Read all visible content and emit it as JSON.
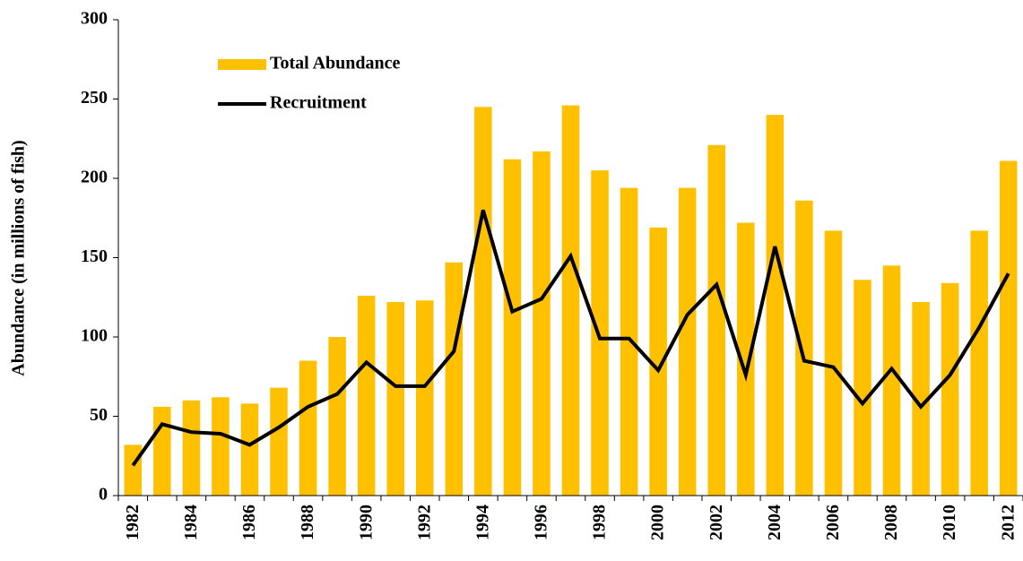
{
  "chart_data": {
    "type": "bar",
    "ylabel": "Abundance (in millions of fish)",
    "categories": [
      "1982",
      null,
      "1984",
      null,
      "1986",
      null,
      "1988",
      null,
      "1990",
      null,
      "1992",
      null,
      "1994",
      null,
      "1996",
      null,
      "1998",
      null,
      "2000",
      null,
      "2002",
      null,
      "2004",
      null,
      "2006",
      null,
      "2008",
      null,
      "2010",
      null,
      "2012"
    ],
    "series": [
      {
        "name": "Total Abundance",
        "type": "bar",
        "color": "#FFC000",
        "values": [
          32,
          56,
          60,
          62,
          58,
          68,
          85,
          100,
          126,
          122,
          123,
          147,
          245,
          212,
          217,
          246,
          205,
          194,
          169,
          194,
          221,
          172,
          240,
          186,
          167,
          136,
          145,
          122,
          134,
          167,
          211
        ]
      },
      {
        "name": "Recruitment",
        "type": "line",
        "color": "#000000",
        "values": [
          19,
          45,
          40,
          39,
          32,
          43,
          56,
          64,
          84,
          69,
          69,
          91,
          180,
          116,
          124,
          151,
          99,
          99,
          79,
          114,
          133,
          76,
          157,
          85,
          81,
          58,
          80,
          56,
          76,
          106,
          140
        ]
      }
    ],
    "ylim": [
      0,
      300
    ],
    "yticks": [
      0,
      50,
      100,
      150,
      200,
      250,
      300
    ],
    "grid": false,
    "legend": "upper left"
  }
}
